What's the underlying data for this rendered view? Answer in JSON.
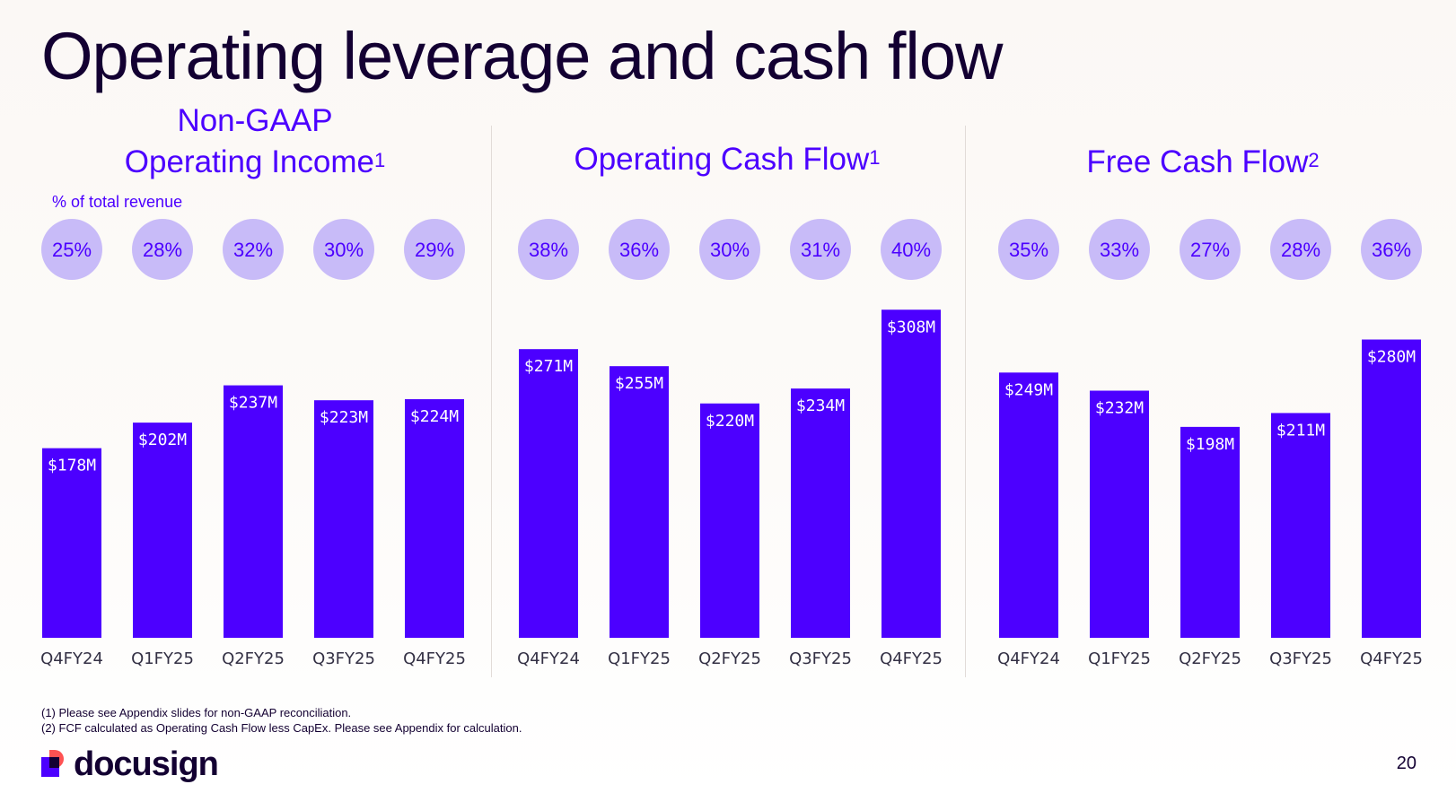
{
  "title": "Operating leverage and cash flow",
  "pct_caption": "% of total revenue",
  "chart_data": [
    {
      "type": "bar",
      "title": "Non-GAAP Operating Income",
      "title_line1": "Non-GAAP",
      "title_line2": "Operating Income",
      "title_sup": "1",
      "categories": [
        "Q4FY24",
        "Q1FY25",
        "Q2FY25",
        "Q3FY25",
        "Q4FY25"
      ],
      "values": [
        178,
        202,
        237,
        223,
        224
      ],
      "value_labels": [
        "$178M",
        "$202M",
        "$237M",
        "$223M",
        "$224M"
      ],
      "pct_labels": [
        "25%",
        "28%",
        "32%",
        "30%",
        "29%"
      ],
      "unit": "$M",
      "ylim": [
        0,
        320
      ],
      "grid": false
    },
    {
      "type": "bar",
      "title": "Operating Cash Flow",
      "title_sup": "1",
      "categories": [
        "Q4FY24",
        "Q1FY25",
        "Q2FY25",
        "Q3FY25",
        "Q4FY25"
      ],
      "values": [
        271,
        255,
        220,
        234,
        308
      ],
      "value_labels": [
        "$271M",
        "$255M",
        "$220M",
        "$234M",
        "$308M"
      ],
      "pct_labels": [
        "38%",
        "36%",
        "30%",
        "31%",
        "40%"
      ],
      "unit": "$M",
      "ylim": [
        0,
        320
      ],
      "grid": false
    },
    {
      "type": "bar",
      "title": "Free Cash Flow",
      "title_sup": "2",
      "categories": [
        "Q4FY24",
        "Q1FY25",
        "Q2FY25",
        "Q3FY25",
        "Q4FY25"
      ],
      "values": [
        249,
        232,
        198,
        211,
        280
      ],
      "value_labels": [
        "$249M",
        "$232M",
        "$198M",
        "$211M",
        "$280M"
      ],
      "pct_labels": [
        "35%",
        "33%",
        "27%",
        "28%",
        "36%"
      ],
      "unit": "$M",
      "ylim": [
        0,
        320
      ],
      "grid": false
    }
  ],
  "footnotes": [
    "(1) Please see Appendix slides for non-GAAP reconciliation.",
    "(2) FCF calculated as Operating Cash Flow less CapEx. Please see Appendix for calculation."
  ],
  "logo_text": "docusign",
  "page_number": "20",
  "colors": {
    "bar": "#4c00ff",
    "pct_circle": "#c8bbf8",
    "accent_text": "#4c00ff",
    "title_text": "#130032"
  }
}
